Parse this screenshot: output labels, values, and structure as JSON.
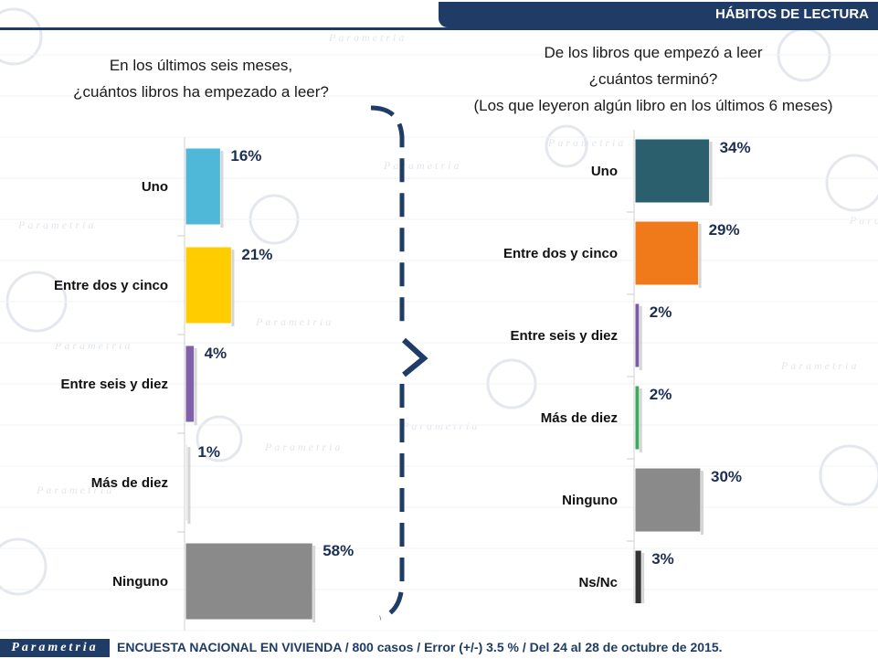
{
  "header": {
    "title": "HÁBITOS DE LECTURA"
  },
  "watermark": {
    "text": "Parametria"
  },
  "chart_data": [
    {
      "type": "bar",
      "orientation": "horizontal",
      "title": "En los últimos seis meses, ¿cuántos libros ha empezado a leer?",
      "title_lines": [
        "En los últimos seis meses,",
        "¿cuántos libros ha empezado a leer?"
      ],
      "categories": [
        "Uno",
        "Entre dos y cinco",
        "Entre seis y diez",
        "Más de diez",
        "Ninguno"
      ],
      "values": [
        16,
        21,
        4,
        1,
        58
      ],
      "value_labels": [
        "16%",
        "21%",
        "4%",
        "1%",
        "58%"
      ],
      "colors": [
        "#4fb8d8",
        "#ffcc00",
        "#8060a8",
        "#e8e8e8",
        "#8a8a8a"
      ],
      "xlim": [
        0,
        100
      ]
    },
    {
      "type": "bar",
      "orientation": "horizontal",
      "title": "De los libros que empezó a leer ¿cuántos terminó? (Los que leyeron algún libro en los últimos 6 meses)",
      "title_lines": [
        "De los libros que empezó a leer",
        "¿cuántos terminó?",
        "(Los que leyeron algún libro en los últimos 6 meses)"
      ],
      "categories": [
        "Uno",
        "Entre dos y cinco",
        "Entre seis y diez",
        "Más de diez",
        "Ninguno",
        "Ns/Nc"
      ],
      "values": [
        34,
        29,
        2,
        2,
        30,
        3
      ],
      "value_labels": [
        "34%",
        "29%",
        "2%",
        "2%",
        "30%",
        "3%"
      ],
      "colors": [
        "#2b5f6e",
        "#f07a1a",
        "#7a5aa0",
        "#3aaa5c",
        "#8a8a8a",
        "#333333"
      ],
      "xlim": [
        0,
        100
      ]
    }
  ],
  "footer": {
    "logo": "Parametria",
    "note": "ENCUESTA NACIONAL EN VIVIENDA / 800 casos / Error (+/-) 3.5 % / Del 24 al 28 de octubre de 2015."
  }
}
